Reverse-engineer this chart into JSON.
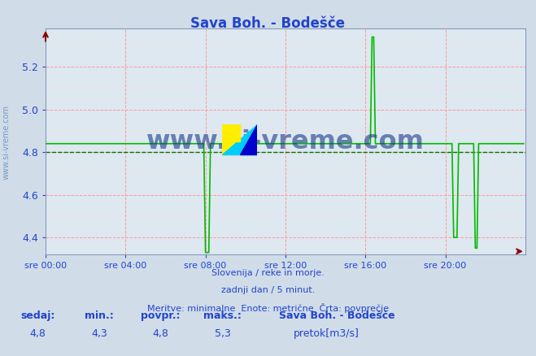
{
  "title": "Sava Boh. - Bodešče",
  "xlabel_ticks": [
    "sre 00:00",
    "sre 04:00",
    "sre 08:00",
    "sre 12:00",
    "sre 16:00",
    "sre 20:00"
  ],
  "ylabel_ticks": [
    4.4,
    4.6,
    4.8,
    5.0,
    5.2
  ],
  "ylim": [
    4.32,
    5.38
  ],
  "xlim": [
    0,
    288
  ],
  "avg_value": 4.8,
  "line_color": "#00bb00",
  "avg_color": "#007700",
  "grid_color_major": "#ff9999",
  "grid_color_minor": "#ffdddd",
  "bg_color": "#dde8f0",
  "fig_color": "#d0dce8",
  "title_color": "#2244cc",
  "tick_color": "#2244cc",
  "subtitle1": "Slovenija / reke in morje.",
  "subtitle2": "zadnji dan / 5 minut.",
  "subtitle3": "Meritve: minimalne  Enote: metrične  Črta: povprečje",
  "footer_labels": [
    "sedaj:",
    "min.:",
    "povpr.:",
    "maks.:"
  ],
  "footer_values": [
    "4,8",
    "4,3",
    "4,8",
    "5,3"
  ],
  "legend_title": "Sava Boh. - Bodešče",
  "legend_color": "#00bb00",
  "legend_label": "pretok[m3/s]",
  "watermark": "www.si-vreme.com",
  "watermark_color": "#1a3a8a",
  "sidebar_text": "www.si-vreme.com",
  "sidebar_color": "#6688bb"
}
